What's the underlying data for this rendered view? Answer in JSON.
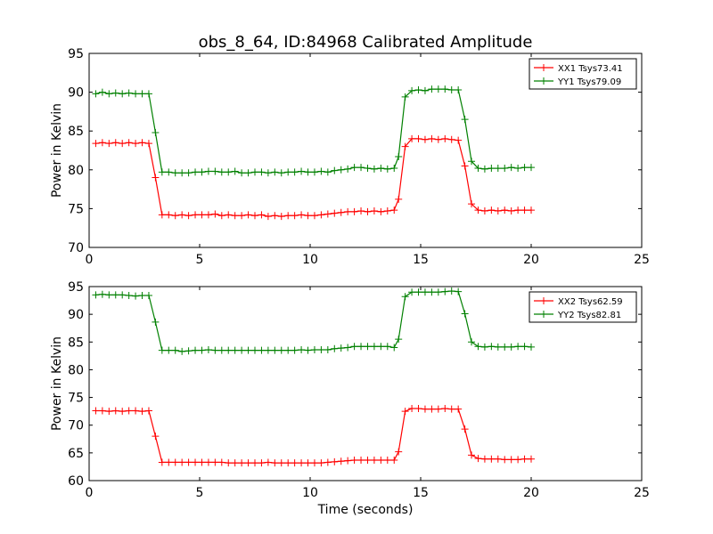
{
  "chart_data": [
    {
      "type": "line",
      "title": "obs_8_64, ID:84968 Calibrated Amplitude",
      "xlabel": "",
      "ylabel": "Power in Kelvin",
      "xlim": [
        0,
        25
      ],
      "ylim": [
        70,
        95
      ],
      "xticks": [
        0,
        5,
        10,
        15,
        20,
        25
      ],
      "yticks": [
        70,
        75,
        80,
        85,
        90,
        95
      ],
      "grid": false,
      "legend": "top-right",
      "x": [
        0.3,
        0.6,
        0.9,
        1.2,
        1.5,
        1.8,
        2.1,
        2.4,
        2.7,
        3.0,
        3.3,
        3.6,
        3.9,
        4.2,
        4.5,
        4.8,
        5.1,
        5.4,
        5.7,
        6.0,
        6.3,
        6.6,
        6.9,
        7.2,
        7.5,
        7.8,
        8.1,
        8.4,
        8.7,
        9.0,
        9.3,
        9.6,
        9.9,
        10.2,
        10.5,
        10.8,
        11.1,
        11.4,
        11.7,
        12.0,
        12.3,
        12.6,
        12.9,
        13.2,
        13.5,
        13.8,
        14.0,
        14.3,
        14.6,
        14.9,
        15.2,
        15.5,
        15.8,
        16.1,
        16.4,
        16.7,
        17.0,
        17.3,
        17.6,
        17.9,
        18.2,
        18.5,
        18.8,
        19.1,
        19.4,
        19.7,
        20.0
      ],
      "series": [
        {
          "name": "XX1 Tsys73.41",
          "color": "#ff0000",
          "values": [
            83.4,
            83.5,
            83.4,
            83.5,
            83.4,
            83.5,
            83.4,
            83.5,
            83.4,
            79.0,
            74.2,
            74.2,
            74.1,
            74.2,
            74.1,
            74.2,
            74.2,
            74.2,
            74.3,
            74.1,
            74.2,
            74.1,
            74.1,
            74.2,
            74.1,
            74.2,
            74.0,
            74.1,
            74.0,
            74.1,
            74.1,
            74.2,
            74.1,
            74.1,
            74.2,
            74.3,
            74.4,
            74.5,
            74.6,
            74.6,
            74.7,
            74.6,
            74.7,
            74.6,
            74.7,
            74.8,
            76.2,
            83.0,
            84.0,
            84.0,
            83.9,
            84.0,
            83.9,
            84.0,
            83.9,
            83.8,
            80.5,
            75.6,
            74.8,
            74.7,
            74.8,
            74.7,
            74.8,
            74.7,
            74.8,
            74.8,
            74.8
          ]
        },
        {
          "name": "YY1 Tsys79.09",
          "color": "#008000",
          "values": [
            89.8,
            90.0,
            89.8,
            89.9,
            89.8,
            89.9,
            89.8,
            89.8,
            89.8,
            84.8,
            79.7,
            79.7,
            79.6,
            79.6,
            79.6,
            79.7,
            79.7,
            79.8,
            79.8,
            79.7,
            79.7,
            79.8,
            79.6,
            79.6,
            79.7,
            79.7,
            79.6,
            79.7,
            79.6,
            79.7,
            79.7,
            79.8,
            79.7,
            79.7,
            79.8,
            79.7,
            79.9,
            80.0,
            80.1,
            80.3,
            80.3,
            80.2,
            80.1,
            80.2,
            80.1,
            80.2,
            81.7,
            89.4,
            90.2,
            90.3,
            90.2,
            90.4,
            90.4,
            90.4,
            90.3,
            90.3,
            86.5,
            81.1,
            80.2,
            80.1,
            80.2,
            80.2,
            80.2,
            80.3,
            80.2,
            80.3,
            80.3
          ]
        }
      ]
    },
    {
      "type": "line",
      "title": "",
      "xlabel": "Time (seconds)",
      "ylabel": "Power in Kelvin",
      "xlim": [
        0,
        25
      ],
      "ylim": [
        60,
        95
      ],
      "xticks": [
        0,
        5,
        10,
        15,
        20,
        25
      ],
      "yticks": [
        60,
        65,
        70,
        75,
        80,
        85,
        90,
        95
      ],
      "grid": false,
      "legend": "top-right",
      "x": [
        0.3,
        0.6,
        0.9,
        1.2,
        1.5,
        1.8,
        2.1,
        2.4,
        2.7,
        3.0,
        3.3,
        3.6,
        3.9,
        4.2,
        4.5,
        4.8,
        5.1,
        5.4,
        5.7,
        6.0,
        6.3,
        6.6,
        6.9,
        7.2,
        7.5,
        7.8,
        8.1,
        8.4,
        8.7,
        9.0,
        9.3,
        9.6,
        9.9,
        10.2,
        10.5,
        10.8,
        11.1,
        11.4,
        11.7,
        12.0,
        12.3,
        12.6,
        12.9,
        13.2,
        13.5,
        13.8,
        14.0,
        14.3,
        14.6,
        14.9,
        15.2,
        15.5,
        15.8,
        16.1,
        16.4,
        16.7,
        17.0,
        17.3,
        17.6,
        17.9,
        18.2,
        18.5,
        18.8,
        19.1,
        19.4,
        19.7,
        20.0
      ],
      "series": [
        {
          "name": "XX2 Tsys62.59",
          "color": "#ff0000",
          "values": [
            72.6,
            72.6,
            72.5,
            72.6,
            72.5,
            72.6,
            72.6,
            72.5,
            72.6,
            68.0,
            63.3,
            63.3,
            63.3,
            63.3,
            63.3,
            63.3,
            63.3,
            63.3,
            63.3,
            63.3,
            63.2,
            63.2,
            63.2,
            63.2,
            63.2,
            63.2,
            63.3,
            63.2,
            63.2,
            63.2,
            63.2,
            63.2,
            63.2,
            63.2,
            63.2,
            63.3,
            63.4,
            63.5,
            63.6,
            63.7,
            63.7,
            63.7,
            63.7,
            63.7,
            63.7,
            63.7,
            65.2,
            72.5,
            73.0,
            73.0,
            72.9,
            72.9,
            72.9,
            73.0,
            72.9,
            72.9,
            69.3,
            64.6,
            64.0,
            63.9,
            63.9,
            63.9,
            63.8,
            63.8,
            63.8,
            63.9,
            63.9
          ]
        },
        {
          "name": "YY2 Tsys82.81",
          "color": "#008000",
          "values": [
            93.5,
            93.6,
            93.5,
            93.5,
            93.5,
            93.4,
            93.3,
            93.4,
            93.4,
            88.6,
            83.5,
            83.5,
            83.5,
            83.3,
            83.4,
            83.5,
            83.5,
            83.6,
            83.5,
            83.5,
            83.5,
            83.5,
            83.5,
            83.5,
            83.5,
            83.5,
            83.5,
            83.5,
            83.5,
            83.5,
            83.5,
            83.6,
            83.5,
            83.6,
            83.6,
            83.6,
            83.8,
            83.9,
            84.0,
            84.2,
            84.2,
            84.2,
            84.2,
            84.2,
            84.2,
            84.0,
            85.5,
            93.2,
            94.0,
            94.0,
            94.0,
            94.0,
            94.0,
            94.1,
            94.2,
            94.1,
            90.1,
            85.0,
            84.2,
            84.1,
            84.2,
            84.1,
            84.1,
            84.1,
            84.2,
            84.2,
            84.1
          ]
        }
      ]
    }
  ]
}
